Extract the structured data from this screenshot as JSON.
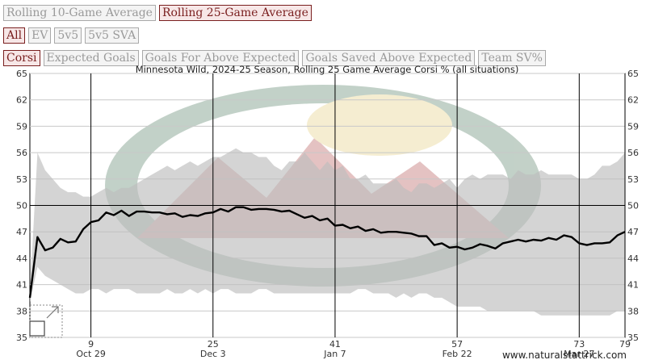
{
  "controls": {
    "rolling": [
      {
        "label": "Rolling 10-Game Average",
        "active": false
      },
      {
        "label": "Rolling 25-Game Average",
        "active": true
      }
    ],
    "situations": [
      {
        "label": "All",
        "active": true
      },
      {
        "label": "EV",
        "active": false
      },
      {
        "label": "5v5",
        "active": false
      },
      {
        "label": "5v5 SVA",
        "active": false
      }
    ],
    "metrics": [
      {
        "label": "Corsi",
        "active": true
      },
      {
        "label": "Expected Goals",
        "active": false
      },
      {
        "label": "Goals For Above Expected",
        "active": false
      },
      {
        "label": "Goals Saved Above Expected",
        "active": false
      },
      {
        "label": "Team SV%",
        "active": false
      }
    ]
  },
  "credit": "www.naturalstattrick.com",
  "colors": {
    "accent": "#7a1f1f",
    "band": "#bdbdbd",
    "line": "#000000"
  },
  "chart_data": {
    "type": "line",
    "title": "Minnesota Wild, 2024-25 Season, Rolling 25 Game Average Corsi % (all situations)",
    "xlim": [
      1,
      79
    ],
    "ylim": [
      35,
      65
    ],
    "yticks": [
      35,
      38,
      41,
      44,
      47,
      50,
      53,
      56,
      59,
      62,
      65
    ],
    "xticks": [
      {
        "game": 9,
        "date": "Oct 29"
      },
      {
        "game": 25,
        "date": "Dec 3"
      },
      {
        "game": 41,
        "date": "Jan 7"
      },
      {
        "game": 57,
        "date": "Feb 22"
      },
      {
        "game": 73,
        "date": "Mar 27"
      },
      {
        "game": 79,
        "date": ""
      }
    ],
    "reference_y": 50,
    "series": [
      {
        "x": [
          1,
          2,
          3,
          4,
          5,
          6,
          7,
          8,
          9,
          10,
          11,
          12,
          13,
          14,
          15,
          16,
          17,
          18,
          19,
          20,
          21,
          22,
          23,
          24,
          25,
          26,
          27,
          28,
          29,
          30,
          31,
          32,
          33,
          34,
          35,
          36,
          37,
          38,
          39,
          40,
          41,
          42,
          43,
          44,
          45,
          46,
          47,
          48,
          49,
          50,
          51,
          52,
          53,
          54,
          55,
          56,
          57,
          58,
          59,
          60,
          61,
          62,
          63,
          64,
          65,
          66,
          67,
          68,
          69,
          70,
          71,
          72,
          73,
          74,
          75,
          76,
          77,
          78,
          79
        ],
        "values": [
          39.5,
          46.4,
          44.9,
          45.2,
          46.2,
          45.8,
          45.9,
          47.3,
          48.1,
          48.3,
          49.2,
          48.9,
          49.4,
          48.8,
          49.3,
          49.3,
          49.2,
          49.2,
          49.0,
          49.1,
          48.7,
          48.9,
          48.8,
          49.1,
          49.2,
          49.6,
          49.3,
          49.8,
          49.8,
          49.5,
          49.6,
          49.6,
          49.5,
          49.3,
          49.4,
          49.0,
          48.6,
          48.8,
          48.3,
          48.5,
          47.7,
          47.8,
          47.4,
          47.6,
          47.1,
          47.3,
          46.9,
          47.0,
          47.0,
          46.9,
          46.8,
          46.5,
          46.5,
          45.5,
          45.7,
          45.2,
          45.3,
          45.0,
          45.2,
          45.6,
          45.4,
          45.1,
          45.7,
          45.9,
          46.1,
          45.9,
          46.1,
          46.0,
          46.3,
          46.1,
          46.6,
          46.4,
          45.7,
          45.5,
          45.7,
          45.7,
          45.8,
          46.6,
          47.0
        ]
      }
    ],
    "band": {
      "upper": [
        40,
        56,
        54,
        53,
        52,
        51.5,
        51.5,
        51,
        51,
        51.5,
        52,
        51.5,
        52,
        52,
        52.5,
        53,
        53.5,
        54,
        54.5,
        54,
        54.5,
        55,
        54.5,
        55,
        55.5,
        55.5,
        56,
        56.5,
        56,
        56,
        55.5,
        55.5,
        54.5,
        54,
        55,
        55,
        56,
        55,
        54,
        55,
        54,
        54.5,
        53,
        53,
        53.5,
        52.5,
        52.5,
        52.5,
        53,
        52,
        51.5,
        52.5,
        52.5,
        52,
        52.5,
        53,
        52,
        53,
        53.5,
        53,
        53.5,
        53.5,
        53.5,
        53,
        54,
        53.5,
        53.5,
        54,
        53.5,
        53.5,
        53.5,
        53.5,
        53,
        53,
        53.5,
        54.5,
        54.5,
        55,
        56
      ],
      "lower": [
        39,
        43,
        42,
        41.5,
        41,
        40.5,
        40,
        40,
        40.5,
        40.5,
        40,
        40.5,
        40.5,
        40.5,
        40,
        40,
        40,
        40,
        40.5,
        40,
        40,
        40.5,
        40,
        40.5,
        40,
        40.5,
        40.5,
        40,
        40,
        40,
        40.5,
        40.5,
        40,
        40,
        40,
        40,
        40,
        40,
        40,
        40,
        40,
        40,
        40,
        40.5,
        40.5,
        40,
        40,
        40,
        39.5,
        40,
        39.5,
        40,
        40,
        39.5,
        39.5,
        39,
        38.5,
        38.5,
        38.5,
        38.5,
        38,
        38,
        38,
        38,
        38,
        38,
        38,
        37.5,
        37.5,
        37.5,
        37.5,
        37.5,
        37.5,
        37.5,
        37.5,
        37.5,
        37.5,
        38,
        38
      ]
    }
  }
}
